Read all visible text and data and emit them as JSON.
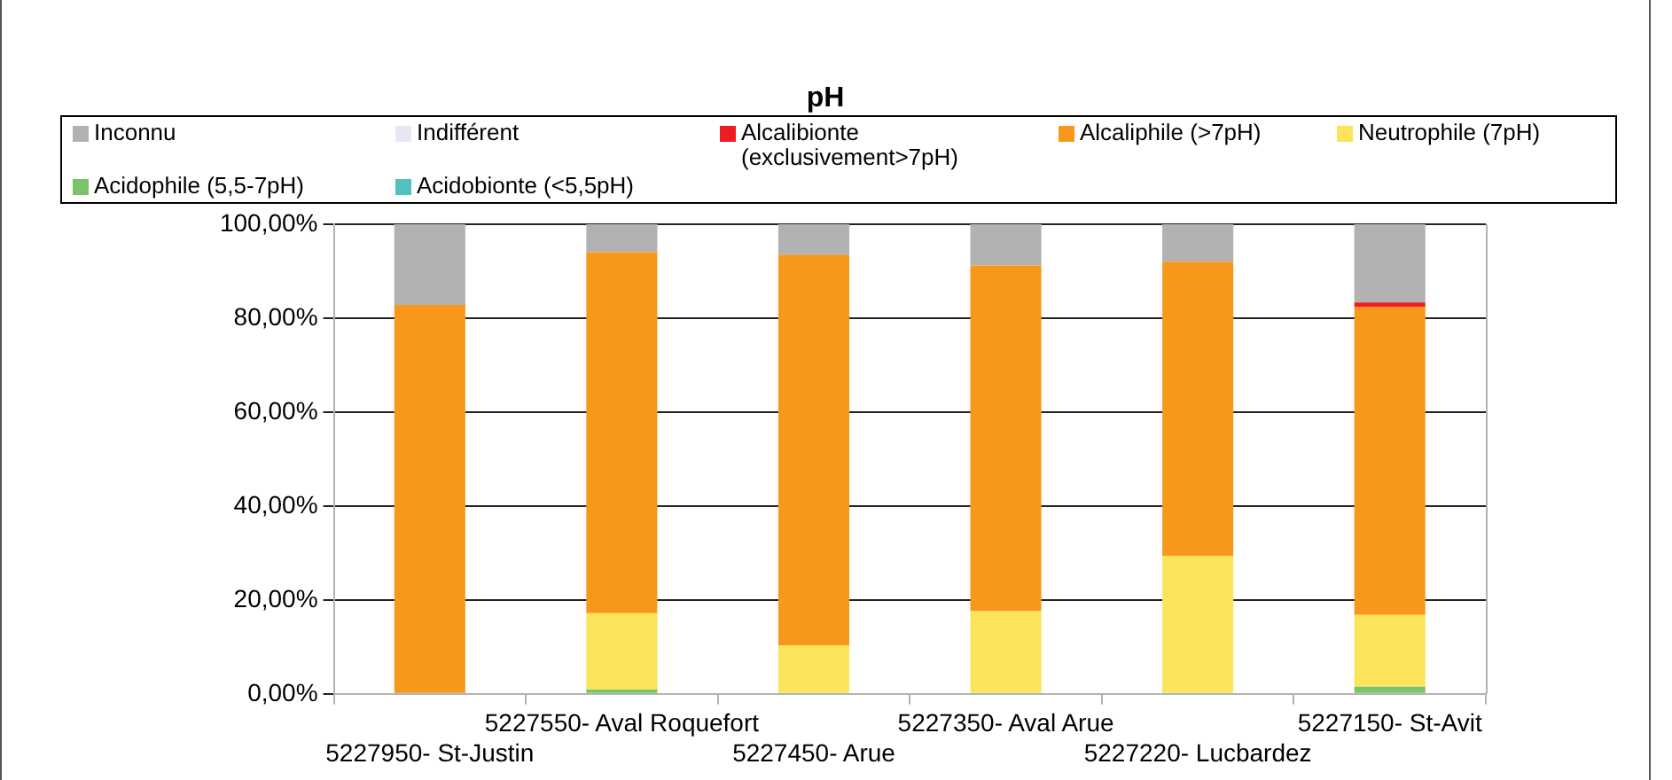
{
  "chart_data": {
    "type": "bar",
    "title": "pH",
    "stacked": true,
    "legend": "top",
    "grid": "y",
    "categories": [
      "5227950- St-Justin",
      "5227550- Aval Roquefort",
      "5227450- Arue",
      "5227350- Aval Arue",
      "5227220- Lucbardez",
      "5227150- St-Avit"
    ],
    "ylim": [
      0,
      100
    ],
    "yticks": [
      {
        "value": 0,
        "label": "0,00%"
      },
      {
        "value": 20,
        "label": "20,00%"
      },
      {
        "value": 40,
        "label": "40,00%"
      },
      {
        "value": 60,
        "label": "60,00%"
      },
      {
        "value": 80,
        "label": "80,00%"
      },
      {
        "value": 100,
        "label": "100,00%"
      }
    ],
    "series": [
      {
        "name": "Acidobionte (<5,5pH)",
        "color": "#4fc2c0",
        "values": [
          0,
          0,
          0,
          0,
          0,
          0
        ]
      },
      {
        "name": "Acidophile (5,5-7pH)",
        "color": "#7ac36a",
        "values": [
          0,
          0.9,
          0,
          0,
          0,
          1.5
        ]
      },
      {
        "name": "Neutrophile (7pH)",
        "color": "#fbe45a",
        "values": [
          0,
          16.3,
          10.3,
          17.6,
          29.4,
          15.3
        ]
      },
      {
        "name": "Alcaliphile (>7pH)",
        "color": "#f7981d",
        "values": [
          82.8,
          76.8,
          83.2,
          73.6,
          62.6,
          65.6
        ]
      },
      {
        "name": "Alcalibionte\n(exclusivement>7pH)",
        "color": "#ee1c25",
        "values": [
          0,
          0,
          0,
          0,
          0,
          0.9
        ]
      },
      {
        "name": "Indifférent",
        "color": "#e6e6f5",
        "values": [
          0,
          0,
          0,
          0,
          0,
          0
        ]
      },
      {
        "name": "Inconnu",
        "color": "#b2b2b2",
        "values": [
          17.2,
          6.0,
          6.5,
          8.8,
          8.0,
          16.7
        ]
      }
    ]
  }
}
